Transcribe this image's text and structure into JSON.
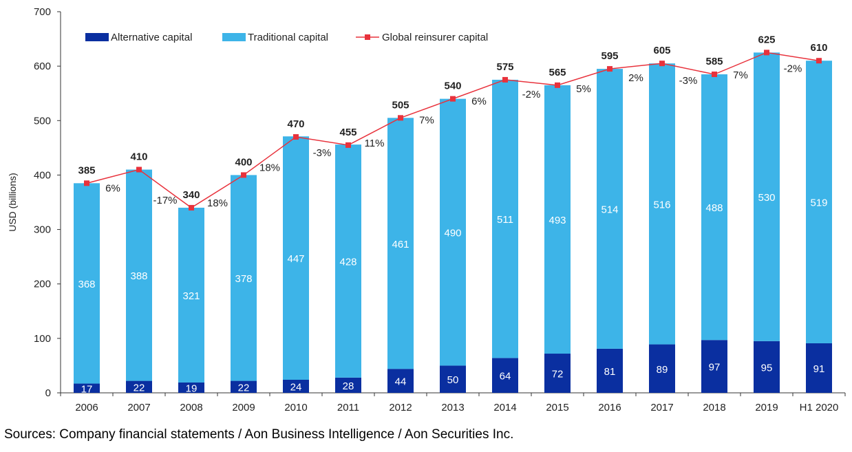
{
  "chart_data": {
    "type": "bar",
    "stacked": true,
    "ylabel": "USD (billions)",
    "ylim": [
      0,
      700
    ],
    "yticks": [
      "0",
      "100",
      "200",
      "300",
      "400",
      "500",
      "600",
      "700"
    ],
    "categories": [
      "2006",
      "2007",
      "2008",
      "2009",
      "2010",
      "2011",
      "2012",
      "2013",
      "2014",
      "2015",
      "2016",
      "2017",
      "2018",
      "2019",
      "H1 2020"
    ],
    "series": [
      {
        "name": "Alternative capital",
        "color": "#0a2fa0",
        "values": [
          17,
          22,
          19,
          22,
          24,
          28,
          44,
          50,
          64,
          72,
          81,
          89,
          97,
          95,
          91
        ]
      },
      {
        "name": "Traditional capital",
        "color": "#3db4e8",
        "values": [
          368,
          388,
          321,
          378,
          447,
          428,
          461,
          490,
          511,
          493,
          514,
          516,
          488,
          530,
          519
        ]
      },
      {
        "name": "Global reinsurer capital",
        "type": "line",
        "color": "#e8323c",
        "values": [
          385,
          410,
          340,
          400,
          470,
          455,
          505,
          540,
          575,
          565,
          595,
          605,
          585,
          625,
          610
        ]
      }
    ],
    "growth_labels": [
      "6%",
      "-17%",
      "18%",
      "18%",
      "-3%",
      "11%",
      "7%",
      "6%",
      "-2%",
      "5%",
      "2%",
      "-3%",
      "7%",
      "-2%"
    ],
    "legend_position": "top-left",
    "grid": false
  },
  "source_text": "Sources: Company financial statements / Aon Business Intelligence / Aon Securities Inc."
}
